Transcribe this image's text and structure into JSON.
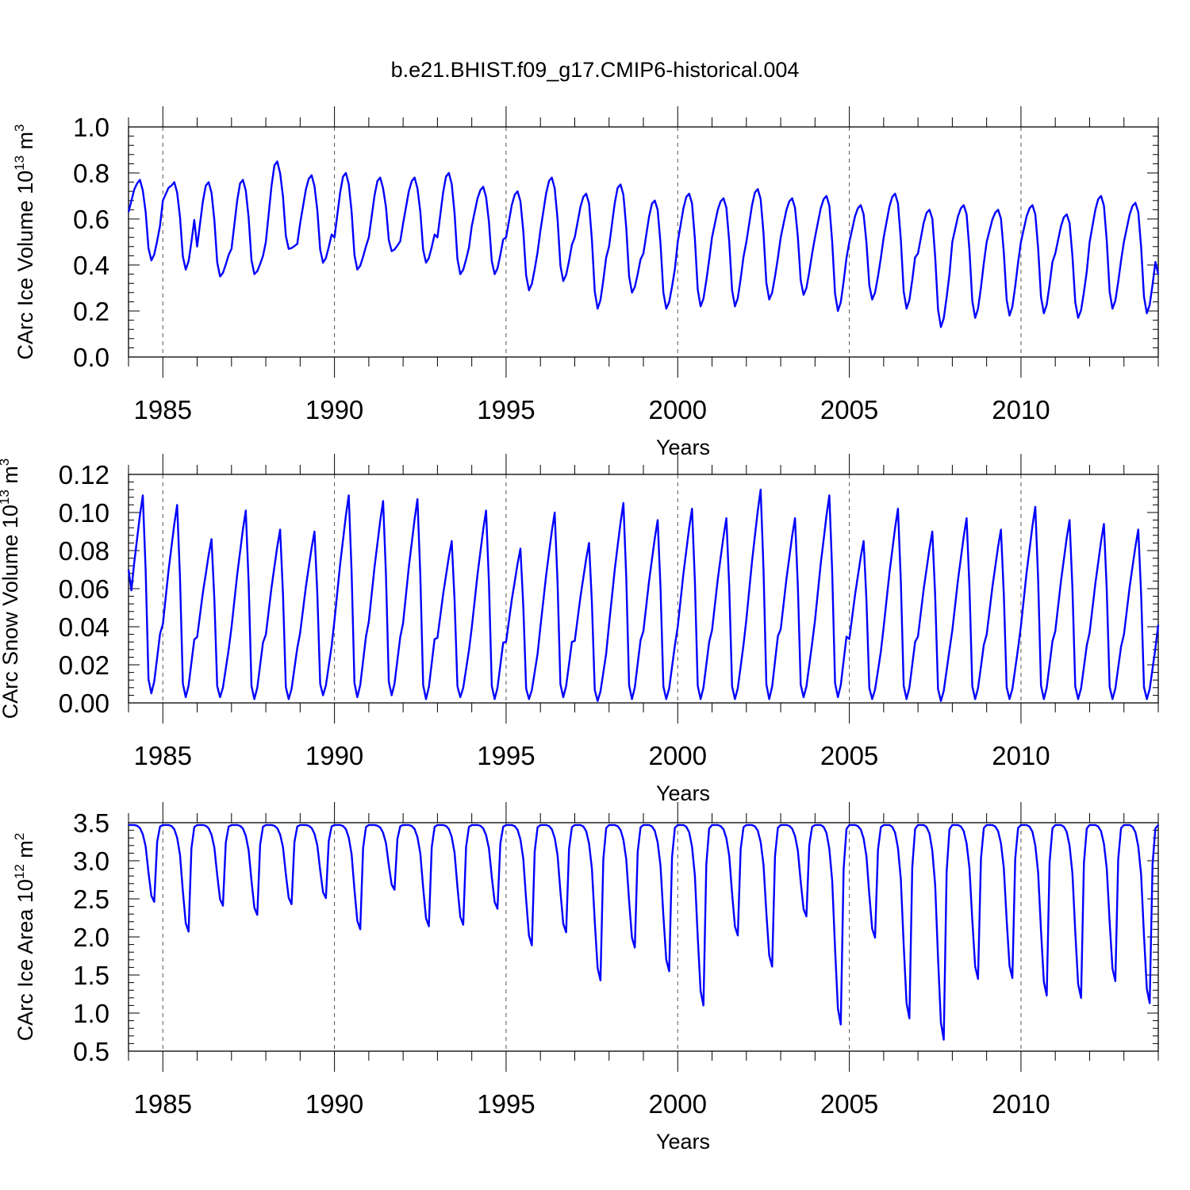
{
  "title": "b.e21.BHIST.f09_g17.CMIP6-historical.004",
  "chart_data": [
    {
      "type": "line",
      "name": "ice-volume",
      "ylabel": {
        "main": "CArc Ice Volume 10",
        "exp": "13",
        "unit": " m",
        "unit_exp": "3"
      },
      "xlabel": "Years",
      "xlim": [
        1984.0,
        2014.0
      ],
      "ylim": [
        0.0,
        1.0
      ],
      "yticks": [
        "0.0",
        "0.2",
        "0.4",
        "0.6",
        "0.8",
        "1.0"
      ],
      "ytick_values": [
        0.0,
        0.2,
        0.4,
        0.6,
        0.8,
        1.0
      ],
      "xticks": [
        "1985",
        "1990",
        "1995",
        "2000",
        "2005",
        "2010"
      ],
      "xtick_values": [
        1985,
        1990,
        1995,
        2000,
        2005,
        2010
      ],
      "series_color": "#0000ff",
      "series": [
        {
          "name": "CArc Ice Volume",
          "annual": [
            [
              0.63,
              0.77,
              0.42
            ],
            [
              0.68,
              0.76,
              0.38
            ],
            [
              0.48,
              0.76,
              0.35
            ],
            [
              0.47,
              0.77,
              0.36
            ],
            [
              0.5,
              0.85,
              0.47
            ],
            [
              0.58,
              0.79,
              0.41
            ],
            [
              0.52,
              0.8,
              0.38
            ],
            [
              0.52,
              0.78,
              0.46
            ],
            [
              0.58,
              0.78,
              0.41
            ],
            [
              0.52,
              0.8,
              0.36
            ],
            [
              0.57,
              0.74,
              0.36
            ],
            [
              0.52,
              0.72,
              0.29
            ],
            [
              0.55,
              0.78,
              0.33
            ],
            [
              0.52,
              0.71,
              0.21
            ],
            [
              0.48,
              0.75,
              0.28
            ],
            [
              0.45,
              0.68,
              0.21
            ],
            [
              0.5,
              0.71,
              0.22
            ],
            [
              0.52,
              0.69,
              0.22
            ],
            [
              0.5,
              0.73,
              0.25
            ],
            [
              0.52,
              0.69,
              0.27
            ],
            [
              0.52,
              0.7,
              0.2
            ],
            [
              0.5,
              0.66,
              0.25
            ],
            [
              0.52,
              0.71,
              0.21
            ],
            [
              0.45,
              0.64,
              0.13
            ],
            [
              0.5,
              0.66,
              0.17
            ],
            [
              0.5,
              0.64,
              0.18
            ],
            [
              0.5,
              0.66,
              0.19
            ],
            [
              0.45,
              0.62,
              0.17
            ],
            [
              0.5,
              0.7,
              0.21
            ],
            [
              0.5,
              0.67,
              0.19
            ]
          ],
          "end_value": 0.36
        }
      ]
    },
    {
      "type": "line",
      "name": "snow-volume",
      "ylabel": {
        "main": "CArc Snow Volume 10",
        "exp": "13",
        "unit": " m",
        "unit_exp": "3"
      },
      "xlabel": "Years",
      "xlim": [
        1984.0,
        2014.0
      ],
      "ylim": [
        0.0,
        0.12
      ],
      "yticks": [
        "0.00",
        "0.02",
        "0.04",
        "0.06",
        "0.08",
        "0.10",
        "0.12"
      ],
      "ytick_values": [
        0.0,
        0.02,
        0.04,
        0.06,
        0.08,
        0.1,
        0.12
      ],
      "xticks": [
        "1985",
        "1990",
        "1995",
        "2000",
        "2005",
        "2010"
      ],
      "xtick_values": [
        1985,
        1990,
        1995,
        2000,
        2005,
        2010
      ],
      "series_color": "#0000ff",
      "series": [
        {
          "name": "CArc Snow Volume",
          "peaks": [
            0.109,
            0.104,
            0.086,
            0.101,
            0.091,
            0.09,
            0.109,
            0.106,
            0.107,
            0.085,
            0.101,
            0.081,
            0.1,
            0.084,
            0.105,
            0.096,
            0.102,
            0.097,
            0.112,
            0.097,
            0.109,
            0.085,
            0.102,
            0.09,
            0.097,
            0.091,
            0.103,
            0.096,
            0.094,
            0.091
          ],
          "mins": [
            0.005,
            0.003,
            0.003,
            0.002,
            0.002,
            0.004,
            0.003,
            0.004,
            0.002,
            0.003,
            0.002,
            0.002,
            0.003,
            0.001,
            0.002,
            0.002,
            0.002,
            0.002,
            0.002,
            0.003,
            0.003,
            0.002,
            0.002,
            0.001,
            0.002,
            0.002,
            0.002,
            0.002,
            0.002,
            0.002
          ],
          "start_value": 0.07,
          "end_value": 0.041
        }
      ]
    },
    {
      "type": "line",
      "name": "ice-area",
      "ylabel": {
        "main": "CArc Ice Area 10",
        "exp": "12",
        "unit": " m",
        "unit_exp": "2"
      },
      "xlabel": "Years",
      "xlim": [
        1984.0,
        2014.0
      ],
      "ylim": [
        0.5,
        3.5
      ],
      "yticks": [
        "0.5",
        "1.0",
        "1.5",
        "2.0",
        "2.5",
        "3.0",
        "3.5"
      ],
      "ytick_values": [
        0.5,
        1.0,
        1.5,
        2.0,
        2.5,
        3.0,
        3.5
      ],
      "xticks": [
        "1985",
        "1990",
        "1995",
        "2000",
        "2005",
        "2010"
      ],
      "xtick_values": [
        1985,
        1990,
        1995,
        2000,
        2005,
        2010
      ],
      "series_color": "#0000ff",
      "series": [
        {
          "name": "CArc Ice Area",
          "mins": [
            2.46,
            2.07,
            2.41,
            2.29,
            2.43,
            2.51,
            2.1,
            2.62,
            2.14,
            2.16,
            2.37,
            1.89,
            2.06,
            1.43,
            1.86,
            1.55,
            1.1,
            2.02,
            1.61,
            2.27,
            0.85,
            1.99,
            0.93,
            0.65,
            1.45,
            1.46,
            1.23,
            1.2,
            1.42,
            1.13
          ],
          "max_value": 3.47,
          "end_value": 3.47
        }
      ]
    }
  ]
}
